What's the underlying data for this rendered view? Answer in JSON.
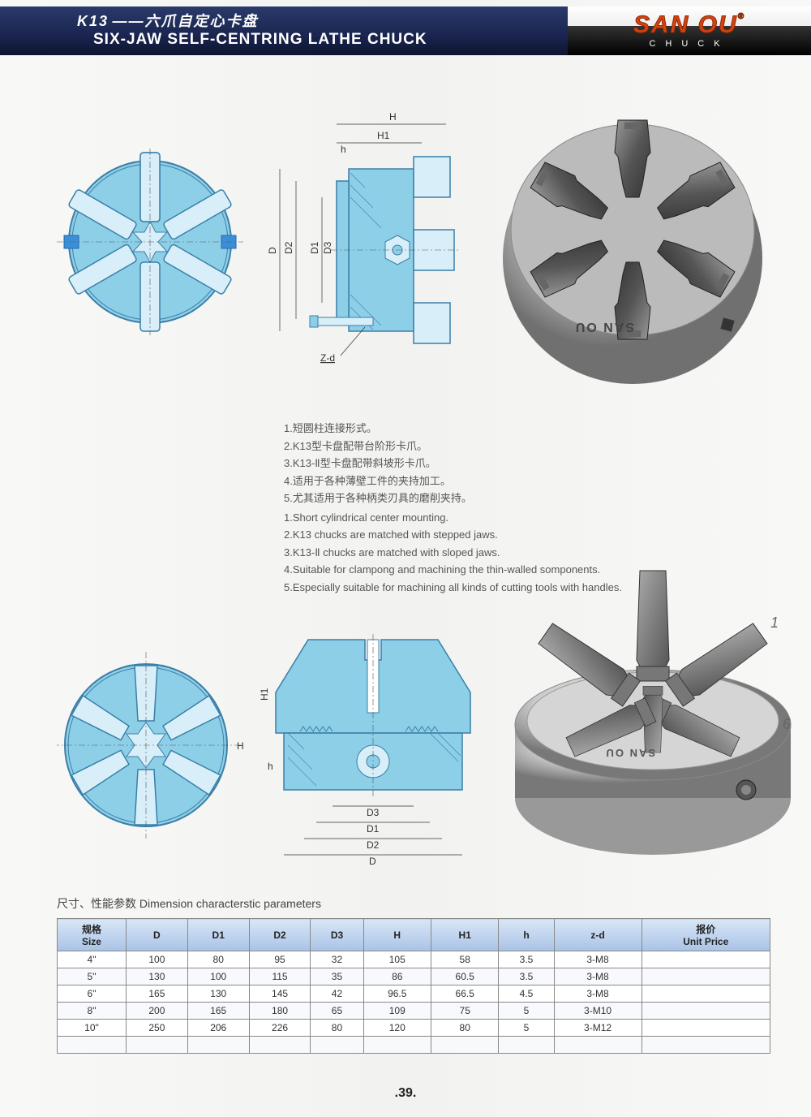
{
  "header": {
    "model": "K13",
    "title_cn": "——六爪自定心卡盘",
    "title_en": "SIX-JAW SELF-CENTRING LATHE CHUCK",
    "brand": "SAN OU",
    "brand_sub": "CHUCK",
    "trademark": "®"
  },
  "colors": {
    "diagram_fill": "#8ecfe8",
    "diagram_stroke": "#3a7fa8",
    "header_bg": "#1a2550",
    "brand_color": "#d8420e",
    "table_header_bg": "#a9c3e6"
  },
  "diagram_labels": {
    "top_side": {
      "H": "H",
      "H1": "H1",
      "h": "h",
      "D": "D",
      "D1": "D1",
      "D2": "D2",
      "D3": "D3",
      "Zd": "Z-d"
    },
    "bottom_side": {
      "H": "H",
      "H1": "H1",
      "h": "h",
      "D": "D",
      "D1": "D1",
      "D2": "D2",
      "D3": "D3"
    }
  },
  "features_cn": [
    "1.短圆柱连接形式。",
    "2.K13型卡盘配带台阶形卡爪。",
    "3.K13-Ⅱ型卡盘配带斜坡形卡爪。",
    "4.适用于各种薄壁工件的夹持加工。",
    "5.尤其适用于各种柄类刃具的磨削夹持。"
  ],
  "features_en": [
    "1.Short cylindrical center mounting.",
    "2.K13 chucks are matched with stepped jaws.",
    "3.K13-Ⅱ chucks are matched with sloped jaws.",
    "4.Suitable for clampong and machining the thin-walled somponents.",
    "5.Especially suitable for machining all kinds of cutting tools with handles."
  ],
  "table": {
    "title": "尺寸、性能参数   Dimension characterstic parameters",
    "columns": [
      {
        "label_cn": "规格",
        "label_en": "Size"
      },
      {
        "label": "D"
      },
      {
        "label": "D1"
      },
      {
        "label": "D2"
      },
      {
        "label": "D3"
      },
      {
        "label": "H"
      },
      {
        "label": "H1"
      },
      {
        "label": "h"
      },
      {
        "label": "z-d"
      },
      {
        "label_cn": "报价",
        "label_en": "Unit Price"
      }
    ],
    "rows": [
      {
        "size": "4\"",
        "D": "100",
        "D1": "80",
        "D2": "95",
        "D3": "32",
        "H": "105",
        "H1": "58",
        "h": "3.5",
        "zd": "3-M8",
        "price": ""
      },
      {
        "size": "5\"",
        "D": "130",
        "D1": "100",
        "D2": "115",
        "D3": "35",
        "H": "86",
        "H1": "60.5",
        "h": "3.5",
        "zd": "3-M8",
        "price": ""
      },
      {
        "size": "6\"",
        "D": "165",
        "D1": "130",
        "D2": "145",
        "D3": "42",
        "H": "96.5",
        "H1": "66.5",
        "h": "4.5",
        "zd": "3-M8",
        "price": ""
      },
      {
        "size": "8\"",
        "D": "200",
        "D1": "165",
        "D2": "180",
        "D3": "65",
        "H": "109",
        "H1": "75",
        "h": "5",
        "zd": "3-M10",
        "price": ""
      },
      {
        "size": "10\"",
        "D": "250",
        "D1": "206",
        "D2": "226",
        "D3": "80",
        "H": "120",
        "H1": "80",
        "h": "5",
        "zd": "3-M12",
        "price": ""
      }
    ]
  },
  "page_number": ".39."
}
